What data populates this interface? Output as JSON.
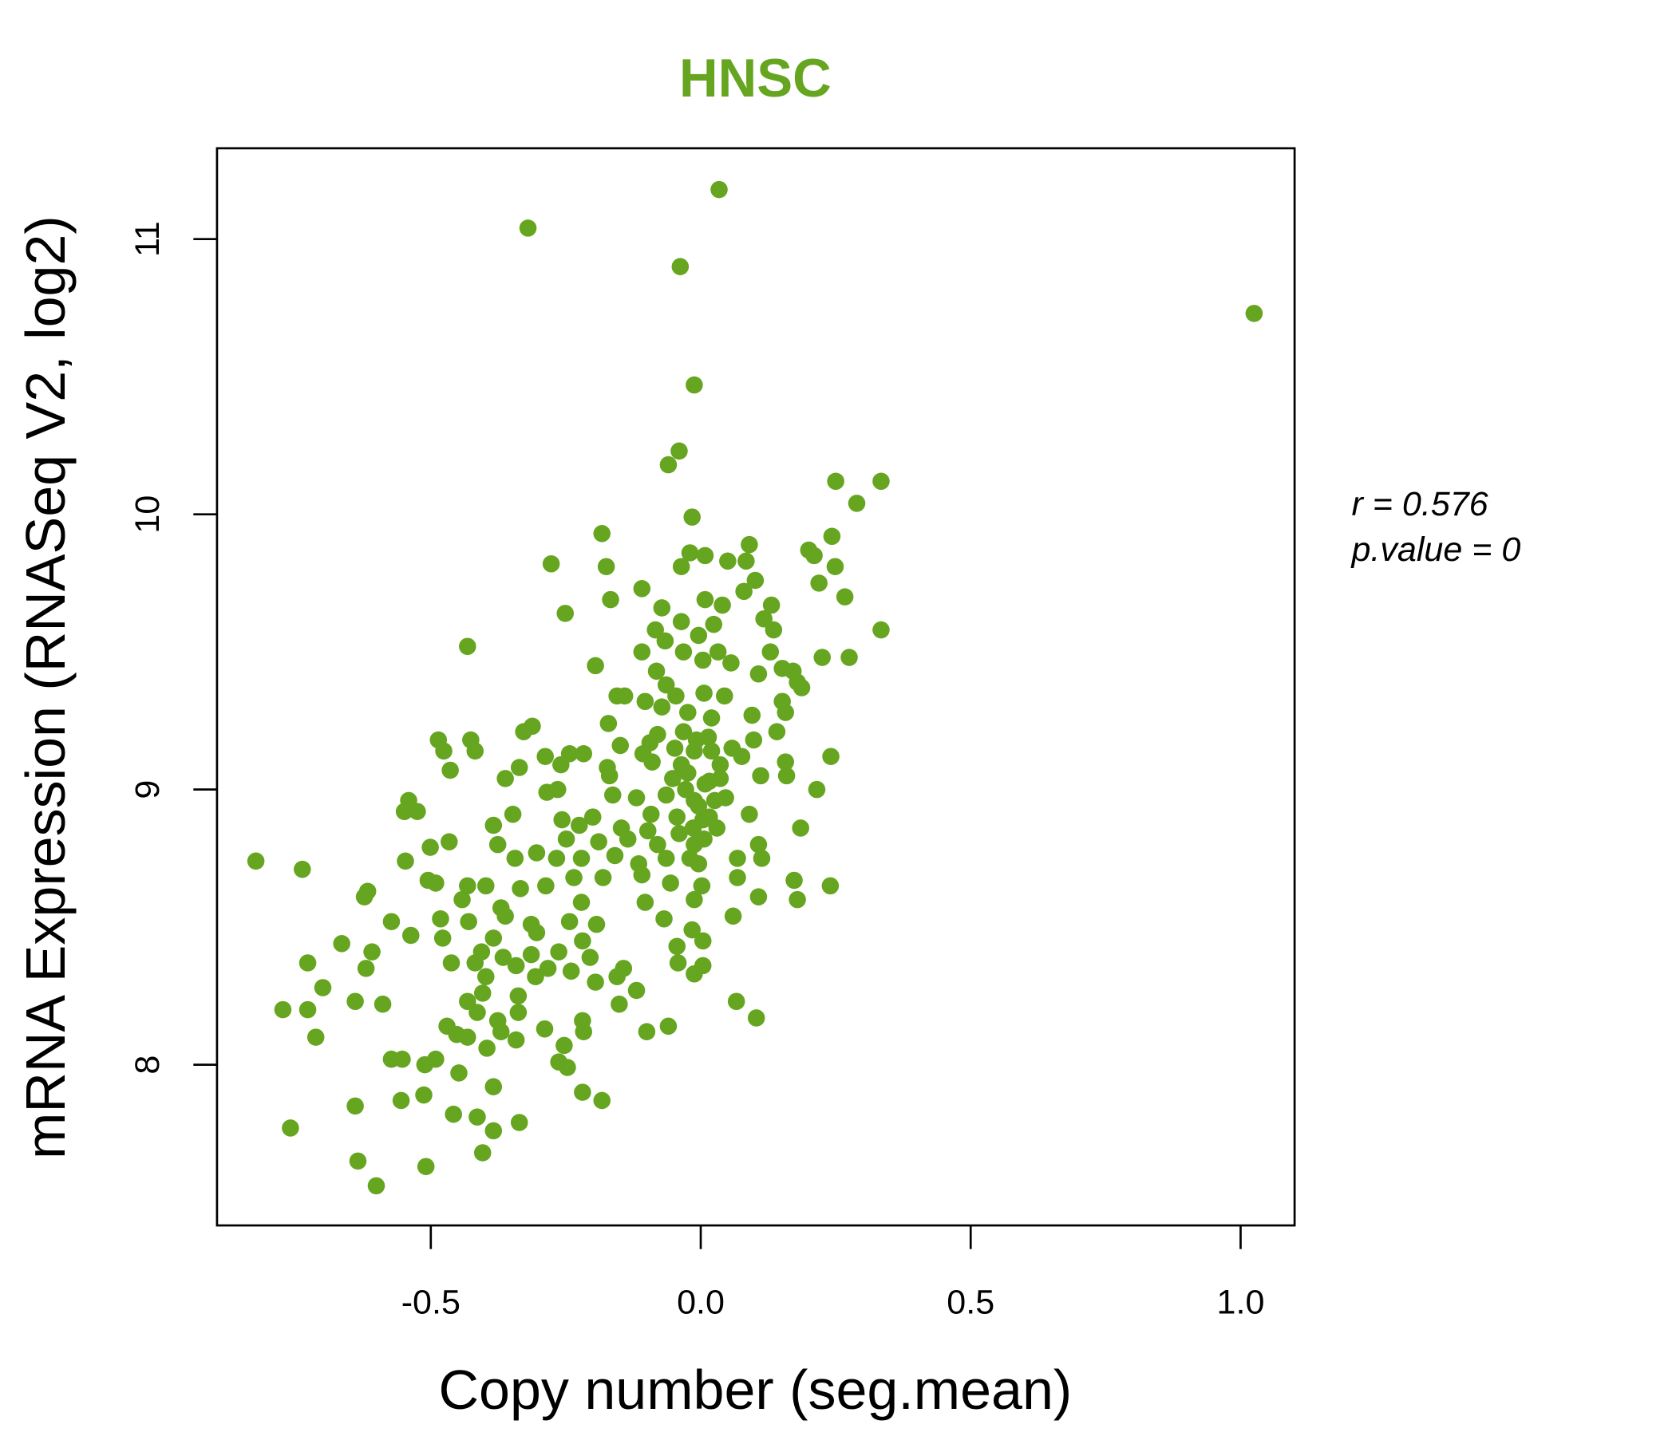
{
  "chart_data": {
    "type": "scatter",
    "title": "HNSC",
    "xlabel": "Copy number (seg.mean)",
    "ylabel": "mRNA Expression (RNASeq V2, log2)",
    "xlim": [
      -0.896,
      1.1
    ],
    "ylim": [
      7.416,
      11.33
    ],
    "xticks": [
      -0.5,
      0.0,
      0.5,
      1.0
    ],
    "xtick_labels": [
      "-0.5",
      "0.0",
      "0.5",
      "1.0"
    ],
    "yticks": [
      8,
      9,
      10,
      11
    ],
    "ytick_labels": [
      "8",
      "9",
      "10",
      "11"
    ],
    "grid": false,
    "color": "#65a51f",
    "annotation": {
      "r_label": "r = 0.576",
      "p_label": "p.value = 0"
    },
    "points": [
      [
        1.025,
        10.73
      ],
      [
        0.034,
        11.18
      ],
      [
        -0.32,
        11.04
      ],
      [
        -0.038,
        10.9
      ],
      [
        -0.012,
        10.47
      ],
      [
        -0.04,
        10.23
      ],
      [
        -0.06,
        10.18
      ],
      [
        0.25,
        10.12
      ],
      [
        0.334,
        10.12
      ],
      [
        0.289,
        10.04
      ],
      [
        -0.016,
        9.99
      ],
      [
        -0.183,
        9.93
      ],
      [
        0.09,
        9.89
      ],
      [
        0.243,
        9.92
      ],
      [
        0.2,
        9.87
      ],
      [
        0.21,
        9.85
      ],
      [
        -0.277,
        9.82
      ],
      [
        -0.175,
        9.81
      ],
      [
        -0.036,
        9.81
      ],
      [
        -0.02,
        9.86
      ],
      [
        0.008,
        9.85
      ],
      [
        0.05,
        9.83
      ],
      [
        0.084,
        9.83
      ],
      [
        0.249,
        9.81
      ],
      [
        0.101,
        9.76
      ],
      [
        0.219,
        9.75
      ],
      [
        -0.109,
        9.73
      ],
      [
        0.08,
        9.72
      ],
      [
        0.267,
        9.7
      ],
      [
        -0.167,
        9.69
      ],
      [
        0.008,
        9.69
      ],
      [
        0.04,
        9.67
      ],
      [
        0.131,
        9.67
      ],
      [
        -0.251,
        9.64
      ],
      [
        -0.072,
        9.66
      ],
      [
        -0.036,
        9.61
      ],
      [
        0.024,
        9.6
      ],
      [
        0.117,
        9.62
      ],
      [
        0.135,
        9.58
      ],
      [
        0.334,
        9.58
      ],
      [
        -0.084,
        9.58
      ],
      [
        -0.066,
        9.54
      ],
      [
        -0.004,
        9.56
      ],
      [
        -0.432,
        9.52
      ],
      [
        -0.109,
        9.5
      ],
      [
        -0.032,
        9.5
      ],
      [
        0.032,
        9.5
      ],
      [
        0.129,
        9.5
      ],
      [
        0.225,
        9.48
      ],
      [
        0.275,
        9.48
      ],
      [
        0.004,
        9.47
      ],
      [
        0.056,
        9.46
      ],
      [
        -0.195,
        9.45
      ],
      [
        -0.082,
        9.43
      ],
      [
        0.151,
        9.44
      ],
      [
        0.171,
        9.43
      ],
      [
        0.107,
        9.42
      ],
      [
        0.179,
        9.39
      ],
      [
        -0.064,
        9.38
      ],
      [
        0.187,
        9.37
      ],
      [
        -0.155,
        9.34
      ],
      [
        -0.103,
        9.32
      ],
      [
        -0.046,
        9.34
      ],
      [
        0.006,
        9.35
      ],
      [
        0.044,
        9.34
      ],
      [
        0.151,
        9.32
      ],
      [
        -0.141,
        9.34
      ],
      [
        -0.072,
        9.3
      ],
      [
        -0.024,
        9.28
      ],
      [
        0.02,
        9.26
      ],
      [
        0.095,
        9.27
      ],
      [
        0.157,
        9.28
      ],
      [
        -0.171,
        9.24
      ],
      [
        -0.312,
        9.23
      ],
      [
        -0.328,
        9.21
      ],
      [
        -0.08,
        9.2
      ],
      [
        -0.032,
        9.21
      ],
      [
        0.014,
        9.19
      ],
      [
        0.141,
        9.21
      ],
      [
        -0.486,
        9.18
      ],
      [
        -0.426,
        9.18
      ],
      [
        -0.149,
        9.16
      ],
      [
        -0.094,
        9.17
      ],
      [
        -0.048,
        9.15
      ],
      [
        0.058,
        9.15
      ],
      [
        0.098,
        9.18
      ],
      [
        -0.476,
        9.14
      ],
      [
        -0.418,
        9.14
      ],
      [
        -0.243,
        9.13
      ],
      [
        -0.217,
        9.13
      ],
      [
        -0.288,
        9.12
      ],
      [
        -0.107,
        9.13
      ],
      [
        -0.012,
        9.14
      ],
      [
        0.076,
        9.12
      ],
      [
        0.241,
        9.12
      ],
      [
        -0.464,
        9.07
      ],
      [
        -0.336,
        9.08
      ],
      [
        -0.259,
        9.09
      ],
      [
        -0.173,
        9.08
      ],
      [
        -0.09,
        9.1
      ],
      [
        -0.036,
        9.09
      ],
      [
        0.036,
        9.09
      ],
      [
        0.157,
        9.1
      ],
      [
        -0.362,
        9.04
      ],
      [
        -0.169,
        9.05
      ],
      [
        -0.052,
        9.04
      ],
      [
        0.016,
        9.03
      ],
      [
        0.111,
        9.05
      ],
      [
        0.159,
        9.05
      ],
      [
        -0.285,
        8.99
      ],
      [
        -0.265,
        9.0
      ],
      [
        -0.163,
        8.98
      ],
      [
        -0.119,
        8.97
      ],
      [
        -0.064,
        8.98
      ],
      [
        -0.012,
        8.96
      ],
      [
        0.046,
        8.97
      ],
      [
        0.215,
        9.0
      ],
      [
        -0.541,
        8.96
      ],
      [
        -0.525,
        8.92
      ],
      [
        -0.549,
        8.92
      ],
      [
        -0.348,
        8.91
      ],
      [
        -0.257,
        8.89
      ],
      [
        -0.2,
        8.9
      ],
      [
        -0.092,
        8.91
      ],
      [
        -0.044,
        8.9
      ],
      [
        0.004,
        8.89
      ],
      [
        0.09,
        8.91
      ],
      [
        -0.384,
        8.87
      ],
      [
        -0.225,
        8.87
      ],
      [
        -0.147,
        8.86
      ],
      [
        -0.098,
        8.85
      ],
      [
        -0.04,
        8.84
      ],
      [
        0.03,
        8.86
      ],
      [
        0.185,
        8.86
      ],
      [
        -0.466,
        8.81
      ],
      [
        -0.376,
        8.8
      ],
      [
        -0.249,
        8.82
      ],
      [
        -0.189,
        8.81
      ],
      [
        -0.135,
        8.82
      ],
      [
        -0.08,
        8.8
      ],
      [
        -0.012,
        8.8
      ],
      [
        0.107,
        8.8
      ],
      [
        -0.824,
        8.74
      ],
      [
        -0.738,
        8.71
      ],
      [
        -0.547,
        8.74
      ],
      [
        -0.501,
        8.79
      ],
      [
        -0.344,
        8.75
      ],
      [
        -0.304,
        8.77
      ],
      [
        -0.267,
        8.75
      ],
      [
        -0.221,
        8.75
      ],
      [
        -0.159,
        8.76
      ],
      [
        -0.115,
        8.73
      ],
      [
        -0.064,
        8.75
      ],
      [
        -0.004,
        8.73
      ],
      [
        0.068,
        8.75
      ],
      [
        0.113,
        8.75
      ],
      [
        -0.505,
        8.67
      ],
      [
        -0.491,
        8.66
      ],
      [
        -0.432,
        8.65
      ],
      [
        -0.398,
        8.65
      ],
      [
        -0.334,
        8.64
      ],
      [
        -0.287,
        8.65
      ],
      [
        -0.235,
        8.68
      ],
      [
        -0.181,
        8.68
      ],
      [
        -0.109,
        8.69
      ],
      [
        -0.056,
        8.66
      ],
      [
        0.002,
        8.65
      ],
      [
        0.068,
        8.68
      ],
      [
        0.173,
        8.67
      ],
      [
        0.24,
        8.65
      ],
      [
        -0.617,
        8.63
      ],
      [
        -0.623,
        8.61
      ],
      [
        -0.442,
        8.6
      ],
      [
        -0.37,
        8.57
      ],
      [
        -0.221,
        8.59
      ],
      [
        -0.103,
        8.59
      ],
      [
        -0.012,
        8.6
      ],
      [
        0.107,
        8.61
      ],
      [
        0.179,
        8.6
      ],
      [
        -0.482,
        8.53
      ],
      [
        -0.43,
        8.52
      ],
      [
        -0.362,
        8.54
      ],
      [
        -0.314,
        8.51
      ],
      [
        -0.243,
        8.52
      ],
      [
        -0.193,
        8.51
      ],
      [
        -0.068,
        8.53
      ],
      [
        0.06,
        8.54
      ],
      [
        -0.573,
        8.52
      ],
      [
        -0.537,
        8.47
      ],
      [
        -0.478,
        8.46
      ],
      [
        -0.384,
        8.46
      ],
      [
        -0.304,
        8.48
      ],
      [
        -0.219,
        8.45
      ],
      [
        -0.016,
        8.49
      ],
      [
        0.004,
        8.45
      ],
      [
        -0.665,
        8.44
      ],
      [
        -0.609,
        8.41
      ],
      [
        -0.406,
        8.41
      ],
      [
        -0.366,
        8.39
      ],
      [
        -0.314,
        8.4
      ],
      [
        -0.263,
        8.41
      ],
      [
        -0.205,
        8.39
      ],
      [
        -0.044,
        8.43
      ],
      [
        -0.728,
        8.37
      ],
      [
        -0.462,
        8.37
      ],
      [
        -0.418,
        8.37
      ],
      [
        -0.342,
        8.36
      ],
      [
        -0.283,
        8.35
      ],
      [
        -0.143,
        8.35
      ],
      [
        -0.042,
        8.37
      ],
      [
        0.004,
        8.36
      ],
      [
        -0.62,
        8.35
      ],
      [
        -0.398,
        8.32
      ],
      [
        -0.306,
        8.32
      ],
      [
        -0.24,
        8.34
      ],
      [
        -0.155,
        8.32
      ],
      [
        -0.012,
        8.33
      ],
      [
        -0.7,
        8.28
      ],
      [
        -0.404,
        8.26
      ],
      [
        -0.195,
        8.3
      ],
      [
        -0.119,
        8.27
      ],
      [
        -0.64,
        8.23
      ],
      [
        -0.589,
        8.22
      ],
      [
        -0.432,
        8.23
      ],
      [
        -0.338,
        8.25
      ],
      [
        0.066,
        8.23
      ],
      [
        -0.774,
        8.2
      ],
      [
        -0.728,
        8.2
      ],
      [
        -0.414,
        8.19
      ],
      [
        -0.338,
        8.19
      ],
      [
        -0.151,
        8.22
      ],
      [
        0.103,
        8.17
      ],
      [
        -0.376,
        8.16
      ],
      [
        -0.219,
        8.16
      ],
      [
        -0.47,
        8.14
      ],
      [
        -0.37,
        8.12
      ],
      [
        -0.289,
        8.13
      ],
      [
        -0.217,
        8.12
      ],
      [
        -0.1,
        8.12
      ],
      [
        -0.06,
        8.14
      ],
      [
        -0.713,
        8.1
      ],
      [
        -0.452,
        8.11
      ],
      [
        -0.432,
        8.1
      ],
      [
        -0.342,
        8.09
      ],
      [
        -0.253,
        8.07
      ],
      [
        -0.396,
        8.06
      ],
      [
        -0.573,
        8.02
      ],
      [
        -0.553,
        8.02
      ],
      [
        -0.511,
        8.0
      ],
      [
        -0.491,
        8.02
      ],
      [
        -0.263,
        8.01
      ],
      [
        -0.247,
        7.99
      ],
      [
        -0.448,
        7.97
      ],
      [
        -0.384,
        7.92
      ],
      [
        -0.513,
        7.89
      ],
      [
        -0.555,
        7.87
      ],
      [
        -0.219,
        7.9
      ],
      [
        -0.183,
        7.87
      ],
      [
        -0.64,
        7.85
      ],
      [
        -0.458,
        7.82
      ],
      [
        -0.414,
        7.81
      ],
      [
        -0.336,
        7.79
      ],
      [
        -0.384,
        7.76
      ],
      [
        -0.76,
        7.77
      ],
      [
        -0.404,
        7.68
      ],
      [
        -0.635,
        7.65
      ],
      [
        -0.509,
        7.63
      ],
      [
        -0.601,
        7.56
      ],
      [
        -0.014,
        8.86
      ],
      [
        -0.004,
        8.94
      ],
      [
        0.008,
        9.02
      ],
      [
        -0.024,
        9.06
      ],
      [
        0.02,
        9.14
      ],
      [
        -0.008,
        9.18
      ],
      [
        0.006,
        8.82
      ],
      [
        0.016,
        8.9
      ],
      [
        -0.02,
        8.75
      ],
      [
        0.026,
        8.96
      ],
      [
        -0.028,
        9.0
      ],
      [
        0.036,
        9.04
      ]
    ]
  }
}
